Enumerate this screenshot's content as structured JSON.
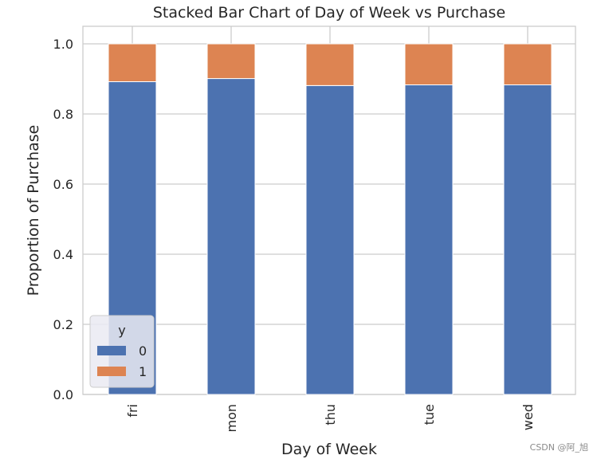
{
  "chart_data": {
    "type": "bar",
    "stacked": true,
    "title": "Stacked Bar Chart of Day of Week vs Purchase",
    "xlabel": "Day of Week",
    "ylabel": "Proportion of Purchase",
    "categories": [
      "fri",
      "mon",
      "thu",
      "tue",
      "wed"
    ],
    "series": [
      {
        "name": "0",
        "values": [
          0.892,
          0.901,
          0.881,
          0.883,
          0.883
        ],
        "color": "#4c72b0"
      },
      {
        "name": "1",
        "values": [
          0.108,
          0.099,
          0.119,
          0.117,
          0.117
        ],
        "color": "#dd8452"
      }
    ],
    "ylim": [
      0.0,
      1.05
    ],
    "yticks": [
      "0.0",
      "0.2",
      "0.4",
      "0.6",
      "0.8",
      "1.0"
    ],
    "grid": true,
    "legend": {
      "title": "y",
      "placement": "lower-left"
    }
  },
  "watermark": "CSDN @阿_旭"
}
